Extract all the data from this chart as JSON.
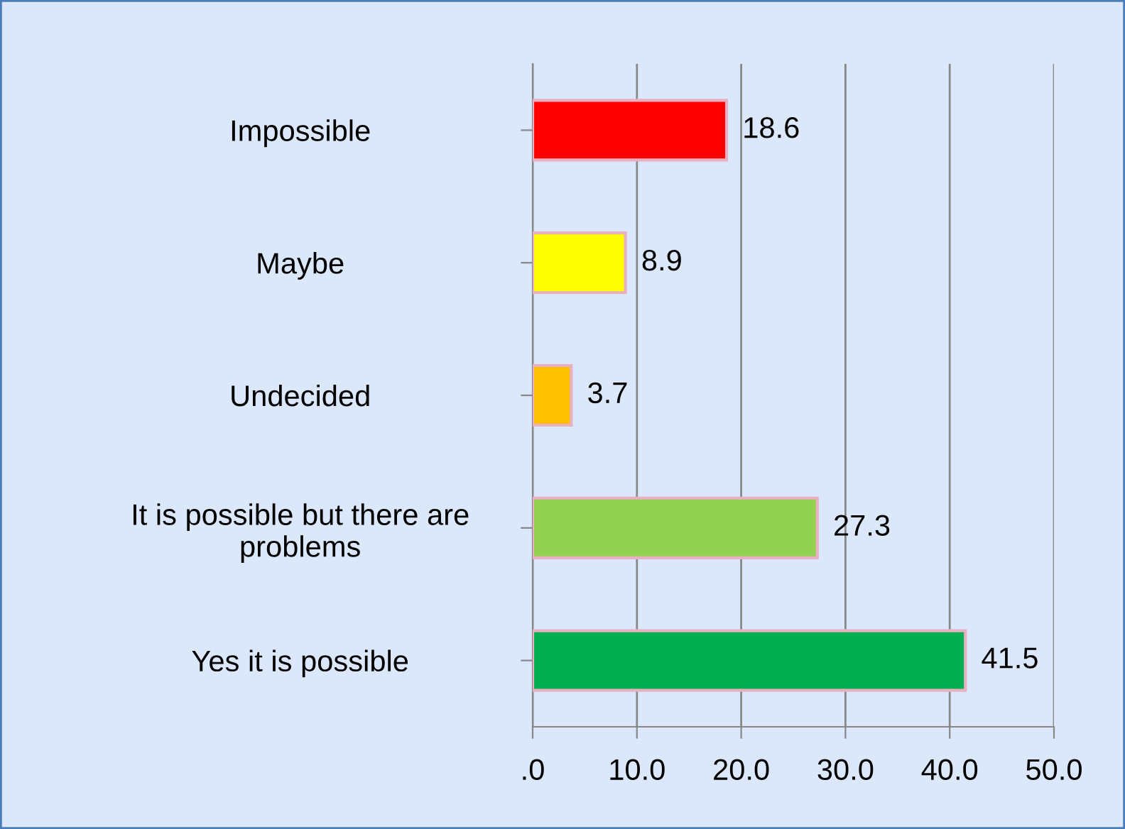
{
  "chart_data": {
    "type": "bar",
    "orientation": "horizontal",
    "categories": [
      "Impossible",
      "Maybe",
      "Undecided",
      "It is possible but there are\nproblems",
      "Yes it is possible"
    ],
    "values": [
      18.6,
      8.9,
      3.7,
      27.3,
      41.5
    ],
    "colors": [
      "#ff0000",
      "#ffff00",
      "#ffc000",
      "#92d050",
      "#00b050"
    ],
    "xlim": [
      0,
      50
    ],
    "xticks": [
      {
        "value": 0,
        "label": ".0"
      },
      {
        "value": 10,
        "label": "10.0"
      },
      {
        "value": 20,
        "label": "20.0"
      },
      {
        "value": 30,
        "label": "30.0"
      },
      {
        "value": 40,
        "label": "40.0"
      },
      {
        "value": 50,
        "label": "50.0"
      }
    ],
    "grid": "x",
    "data_labels": true
  }
}
